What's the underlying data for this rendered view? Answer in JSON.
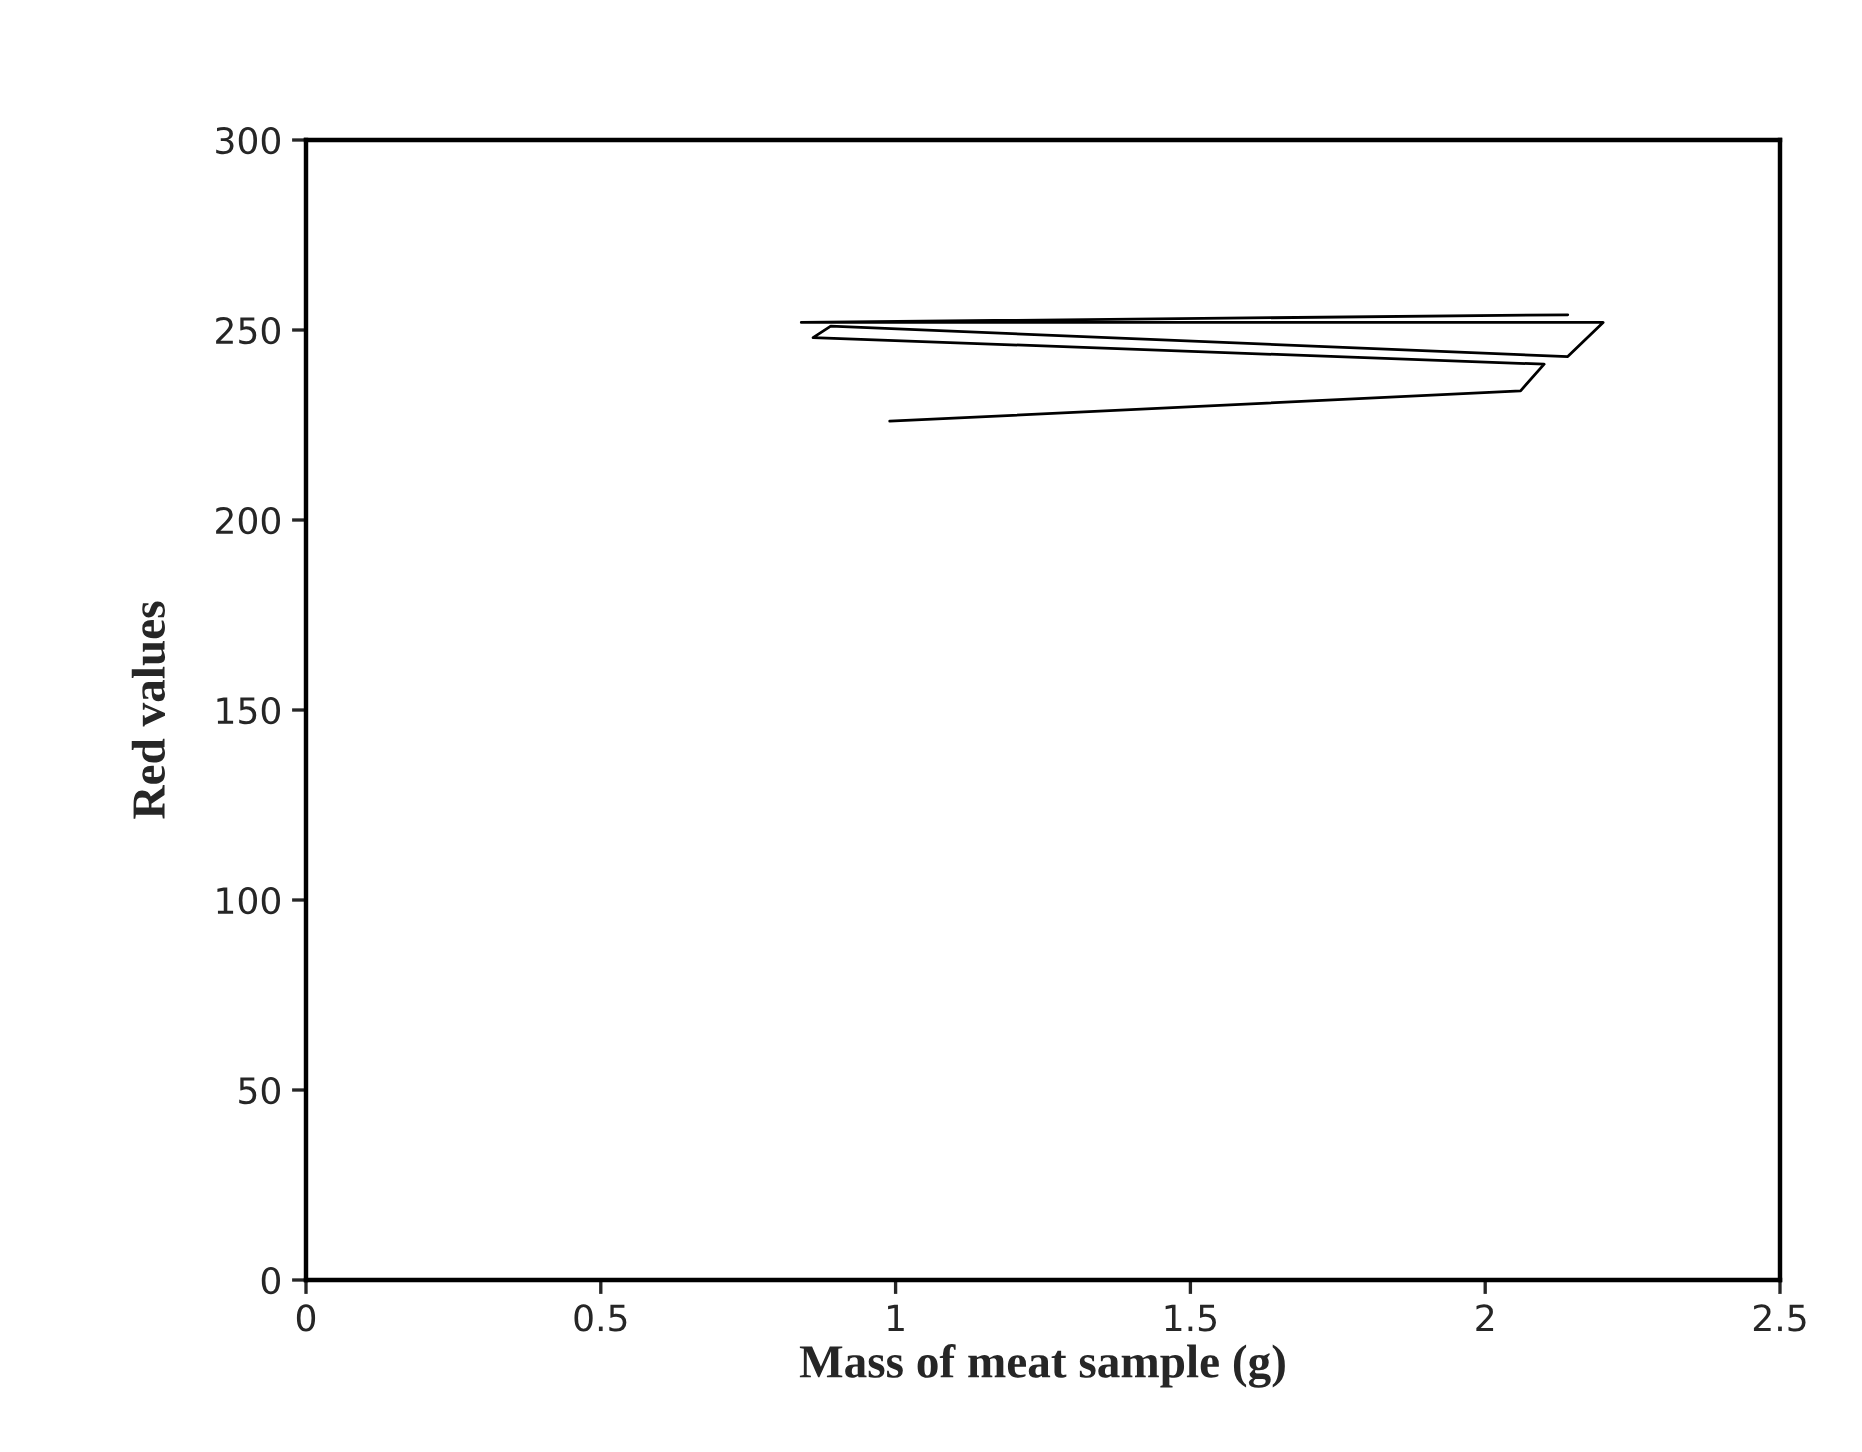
{
  "chart_data": {
    "type": "line",
    "xlabel": "Mass of meat sample (g)",
    "ylabel": "Red values",
    "series": [
      {
        "color": "#000000",
        "x": [
          0.99,
          2.06,
          2.1,
          0.86,
          0.89,
          2.14,
          2.2,
          0.84,
          2.14
        ],
        "values": [
          226,
          234,
          241,
          248,
          251,
          243,
          252,
          252,
          254
        ]
      }
    ],
    "xlim": [
      0,
      2.5
    ],
    "xticks": [
      0,
      0.5,
      1,
      1.5,
      2,
      2.5
    ],
    "ylim": [
      0,
      300
    ],
    "yticks": [
      0,
      50,
      100,
      150,
      200,
      250,
      300
    ],
    "grid": false,
    "legend": false,
    "marker": "none",
    "line_style": "solid"
  }
}
